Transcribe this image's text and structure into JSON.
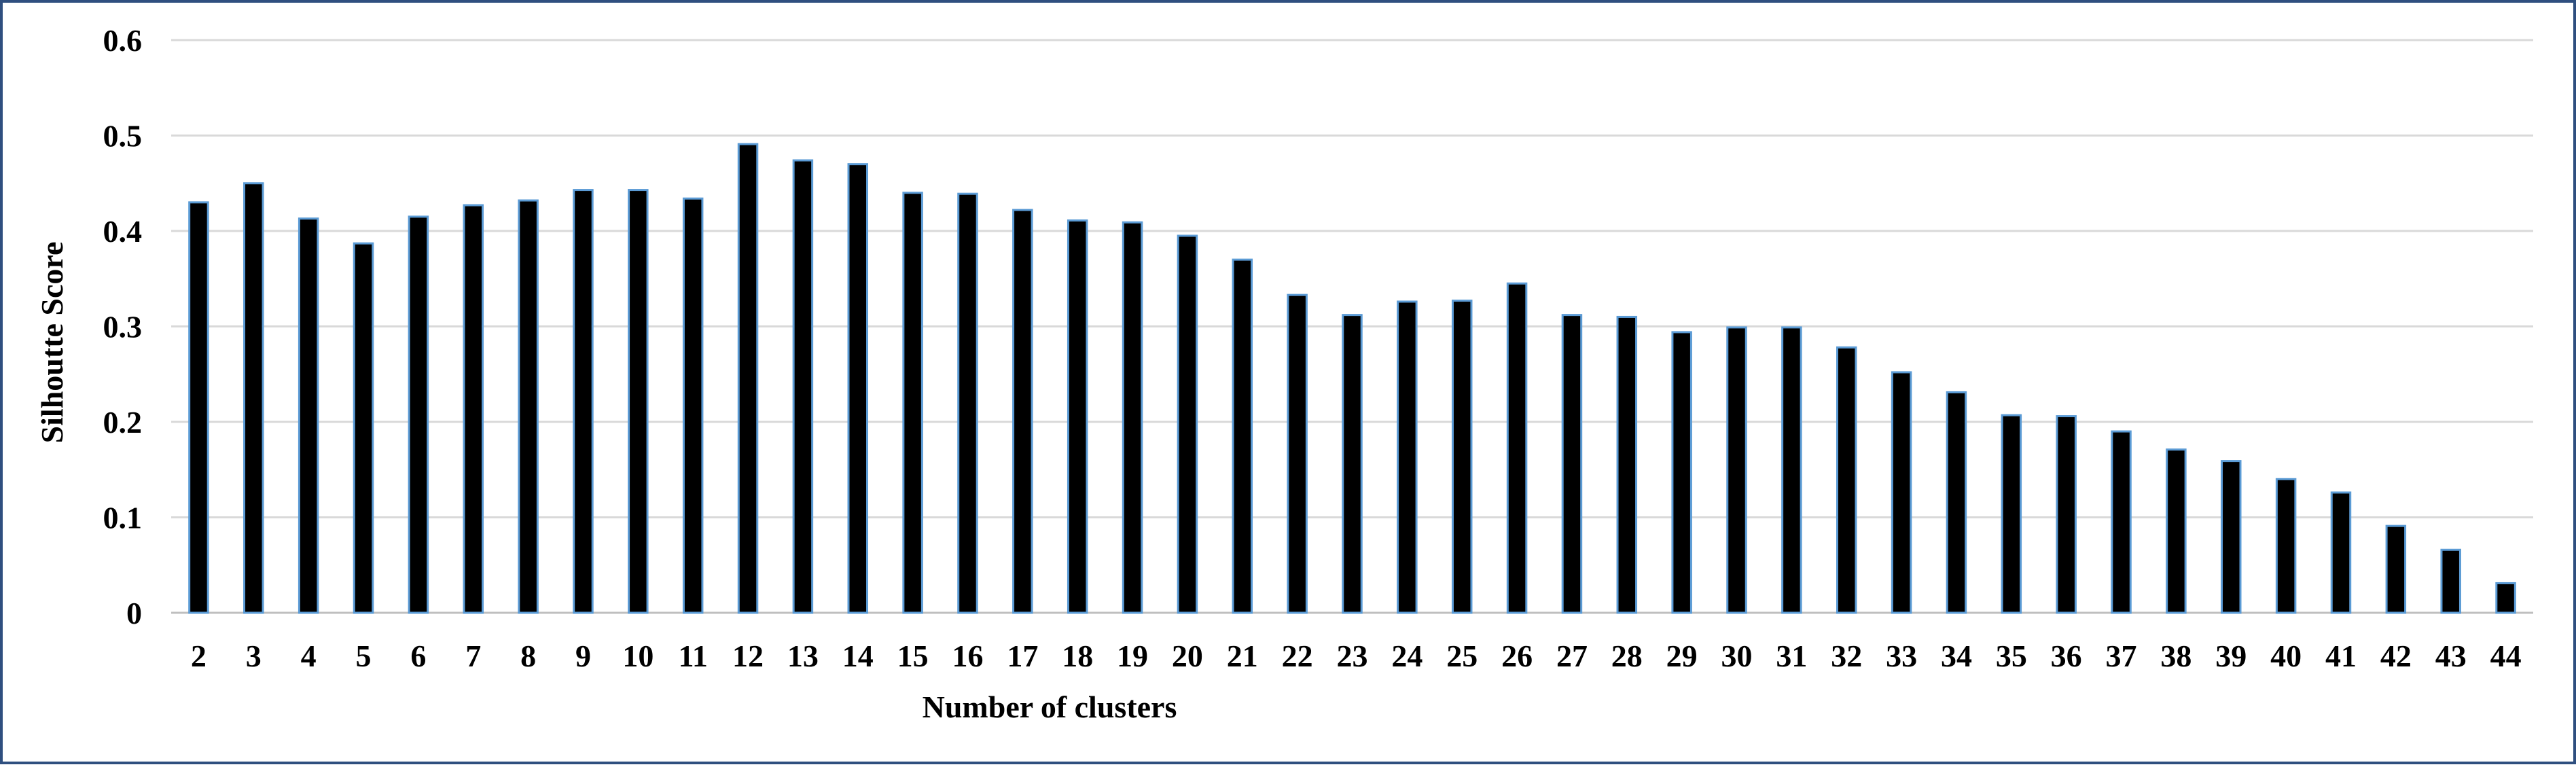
{
  "chart_data": {
    "type": "bar",
    "xlabel": "Number of clusters",
    "ylabel": "Silhoutte Score",
    "ylim": [
      0,
      0.6
    ],
    "yticks": [
      "0",
      "0.1",
      "0.2",
      "0.3",
      "0.4",
      "0.5",
      "0.6"
    ],
    "grid": true,
    "legend": "none",
    "categories": [
      "2",
      "3",
      "4",
      "5",
      "6",
      "7",
      "8",
      "9",
      "10",
      "11",
      "12",
      "13",
      "14",
      "15",
      "16",
      "17",
      "18",
      "19",
      "20",
      "21",
      "22",
      "23",
      "24",
      "25",
      "26",
      "27",
      "28",
      "29",
      "30",
      "31",
      "32",
      "33",
      "34",
      "35",
      "36",
      "37",
      "38",
      "39",
      "40",
      "41",
      "42",
      "43",
      "44"
    ],
    "values": [
      0.43,
      0.45,
      0.413,
      0.387,
      0.415,
      0.427,
      0.432,
      0.443,
      0.443,
      0.434,
      0.491,
      0.474,
      0.47,
      0.44,
      0.439,
      0.422,
      0.411,
      0.409,
      0.395,
      0.37,
      0.333,
      0.312,
      0.326,
      0.327,
      0.345,
      0.312,
      0.31,
      0.294,
      0.299,
      0.299,
      0.278,
      0.252,
      0.231,
      0.207,
      0.206,
      0.19,
      0.171,
      0.159,
      0.14,
      0.126,
      0.091,
      0.066,
      0.031
    ],
    "colors": {
      "bar": "#000000",
      "bar_edge": "#5b9bd5",
      "grid": "#d9d9d9",
      "frame": "#2f4f7f"
    }
  }
}
